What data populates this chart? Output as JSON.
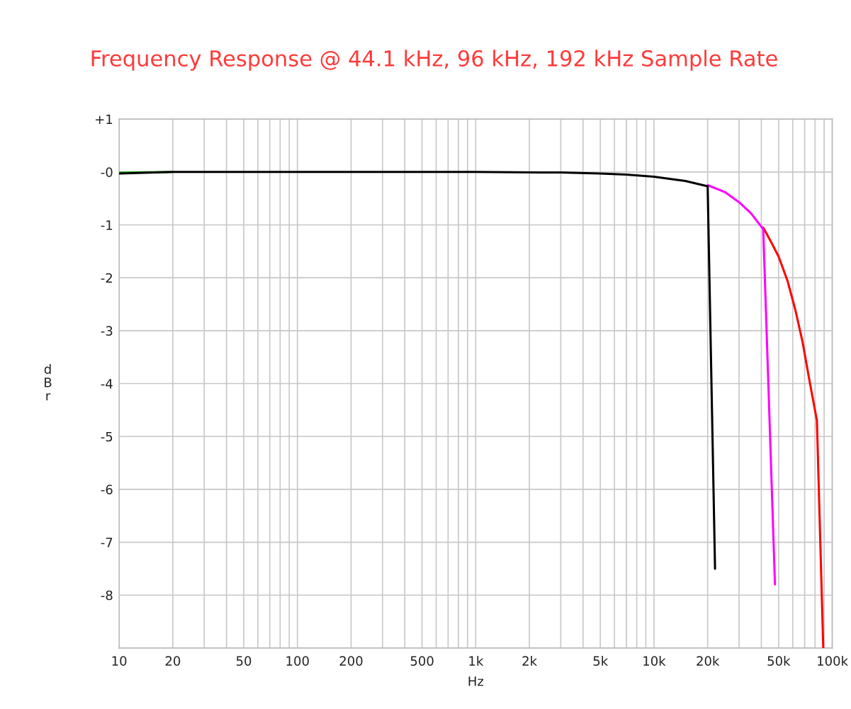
{
  "chart_data": {
    "type": "line",
    "title": "Frequency Response @ 44.1 kHz, 96 kHz, 192 kHz Sample Rate",
    "xlabel": "Hz",
    "ylabel": "d\nB\nr",
    "log": "x",
    "grid": true,
    "marker": "none",
    "line_style": "solid",
    "xlim": [
      10,
      100000
    ],
    "xticks": [
      10,
      20,
      50,
      100,
      200,
      500,
      {
        "value": 1000,
        "label": "1k"
      },
      {
        "value": 2000,
        "label": "2k"
      },
      {
        "value": 5000,
        "label": "5k"
      },
      {
        "value": 10000,
        "label": "10k"
      },
      {
        "value": 20000,
        "label": "20k"
      },
      {
        "value": 50000,
        "label": "50k"
      },
      {
        "value": 100000,
        "label": "100k"
      }
    ],
    "ylim": [
      -9,
      1
    ],
    "yticks": [
      {
        "value": 1,
        "label": "+1"
      },
      {
        "value": 0,
        "label": "-0"
      },
      -1,
      -2,
      -3,
      -4,
      -5,
      -6,
      -7,
      -8,
      {
        "value": -9,
        "label": null
      }
    ],
    "series": [
      {
        "color": "#1fa81f",
        "x": [
          10,
          20
        ],
        "values": [
          -0.01,
          0.0
        ]
      },
      {
        "color": "#ff0000",
        "x": [
          41000,
          45000,
          50000,
          56000,
          62000,
          68000,
          75000,
          82000,
          89000
        ],
        "values": [
          -1.05,
          -1.3,
          -1.6,
          -2.05,
          -2.6,
          -3.2,
          -4.0,
          -4.7,
          -9.0
        ]
      },
      {
        "color": "#ff00ff",
        "x": [
          20000,
          25000,
          30000,
          35000,
          41000,
          47700
        ],
        "values": [
          -0.25,
          -0.38,
          -0.57,
          -0.78,
          -1.08,
          -7.8
        ]
      },
      {
        "color": "#000000",
        "x": [
          10,
          20,
          100,
          1000,
          3000,
          5000,
          7000,
          10000,
          15000,
          20000,
          22000
        ],
        "values": [
          -0.03,
          0.0,
          0.0,
          0.0,
          -0.01,
          -0.03,
          -0.05,
          -0.09,
          -0.17,
          -0.27,
          -7.5
        ]
      }
    ]
  }
}
